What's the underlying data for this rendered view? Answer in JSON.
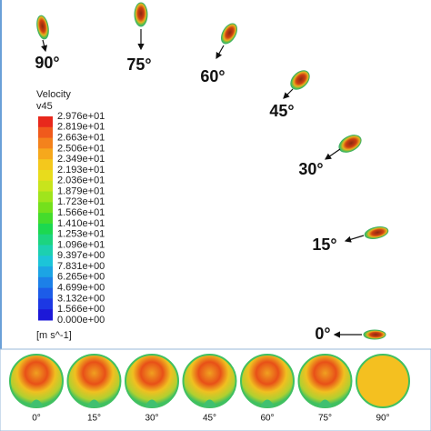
{
  "legend": {
    "title": "Velocity",
    "variable": "v45",
    "labels": [
      "2.976e+01",
      "2.819e+01",
      "2.663e+01",
      "2.506e+01",
      "2.349e+01",
      "2.193e+01",
      "2.036e+01",
      "1.879e+01",
      "1.723e+01",
      "1.566e+01",
      "1.410e+01",
      "1.253e+01",
      "1.096e+01",
      "9.397e+00",
      "7.831e+00",
      "6.265e+00",
      "4.699e+00",
      "3.132e+00",
      "1.566e+00",
      "0.000e+00"
    ],
    "unit": "[m s^-1]"
  },
  "droplets": [
    {
      "label": "90°"
    },
    {
      "label": "75°"
    },
    {
      "label": "60°"
    },
    {
      "label": "45°"
    },
    {
      "label": "30°"
    },
    {
      "label": "15°"
    },
    {
      "label": "0°"
    }
  ],
  "sections": [
    {
      "label": "0°"
    },
    {
      "label": "15°"
    },
    {
      "label": "30°"
    },
    {
      "label": "45°"
    },
    {
      "label": "60°"
    },
    {
      "label": "75°"
    },
    {
      "label": "90°"
    }
  ]
}
